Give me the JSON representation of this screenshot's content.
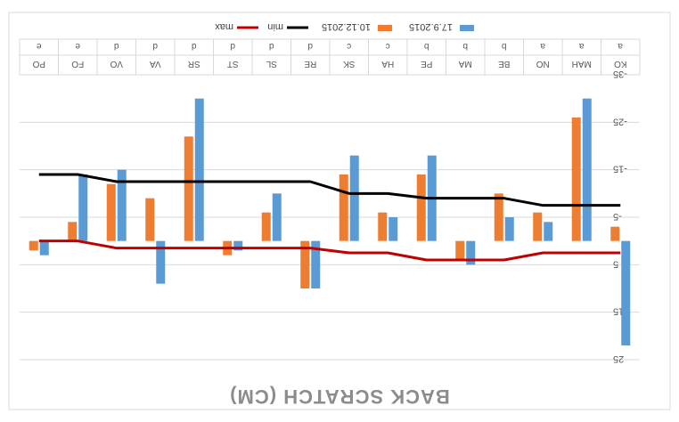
{
  "chart_data": {
    "type": "bar",
    "orientation_note": "image is rotated 180 degrees",
    "title": "BACK SCRATCH (CM)",
    "categories": [
      "KO",
      "MAH",
      "NO",
      "BE",
      "MA",
      "PE",
      "HA",
      "SK",
      "RE",
      "SL",
      "ST",
      "SR",
      "VA",
      "VO",
      "FO",
      "PO"
    ],
    "groups": [
      "a",
      "a",
      "a",
      "b",
      "b",
      "b",
      "c",
      "c",
      "d",
      "d",
      "d",
      "d",
      "d",
      "d",
      "e",
      "e"
    ],
    "yticks": [
      -35,
      -25,
      -15,
      -5,
      5,
      15,
      25
    ],
    "ytick_labels": [
      "-35",
      "-25",
      "-15",
      "-5",
      "5",
      "15",
      "25"
    ],
    "ylim": [
      -35,
      25
    ],
    "legend_position": "bottom",
    "colors": {
      "s1": "#5b9bd5",
      "s2": "#ed7d31",
      "min": "#000000",
      "max": "#c00000"
    },
    "series": [
      {
        "name": "17.9.2015",
        "kind": "bar",
        "values": [
          22,
          -30,
          -4,
          -5,
          5,
          -18,
          -5,
          -18,
          10,
          -10,
          2,
          -30,
          9,
          -15,
          -14,
          3
        ]
      },
      {
        "name": "10.12.2015",
        "kind": "bar",
        "values": [
          -3,
          -26,
          -6,
          -10,
          4,
          -14,
          -6,
          -14,
          10,
          -6,
          3,
          -22,
          -9,
          -12,
          -4,
          2
        ]
      },
      {
        "name": "min",
        "kind": "line",
        "values": [
          -7.5,
          -7.5,
          -7.5,
          -9,
          -9,
          -9,
          -10,
          -10,
          -12.5,
          -12.5,
          -12.5,
          -12.5,
          -12.5,
          -12.5,
          -14,
          -14
        ]
      },
      {
        "name": "max",
        "kind": "line",
        "values": [
          2.5,
          2.5,
          2.5,
          4,
          4,
          4,
          2.5,
          2.5,
          1.5,
          1.5,
          1.5,
          1.5,
          1.5,
          1.5,
          0,
          0
        ]
      }
    ]
  }
}
